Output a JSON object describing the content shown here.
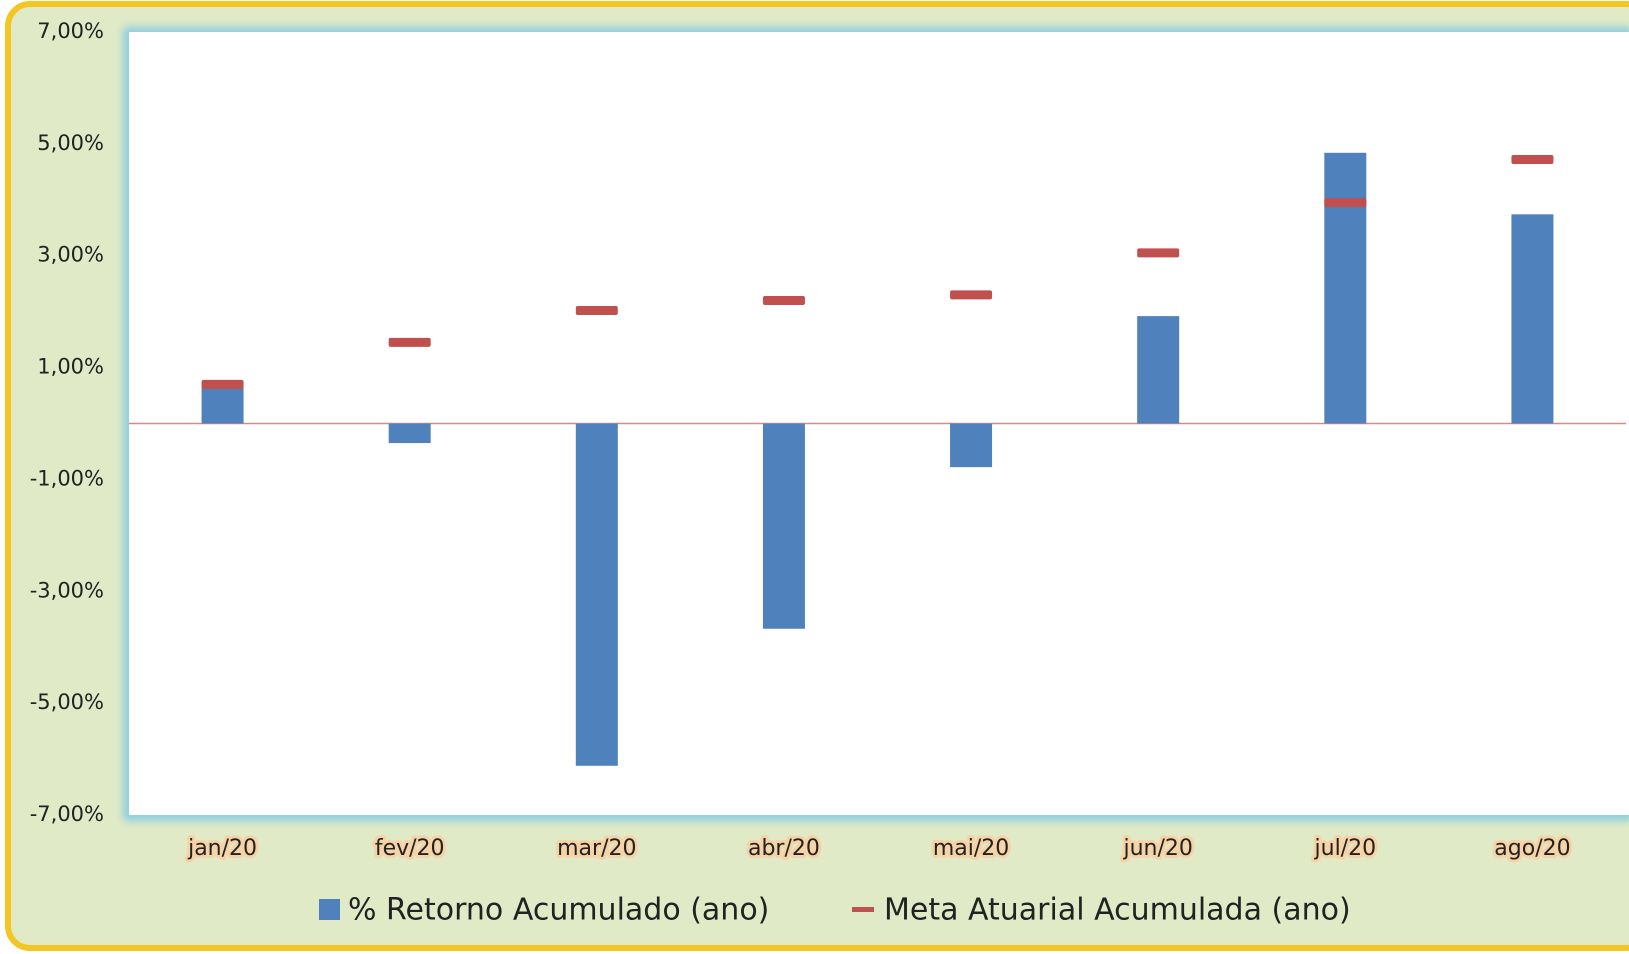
{
  "chart_data": {
    "type": "bar",
    "categories": [
      "jan/20",
      "fev/20",
      "mar/20",
      "abr/20",
      "mai/20",
      "jun/20",
      "jul/20",
      "ago/20"
    ],
    "series": [
      {
        "name": "% Retorno Acumulado (ano)",
        "type": "bar",
        "color": "#4f81bd",
        "values": [
          0.65,
          -0.35,
          -6.12,
          -3.67,
          -0.78,
          1.92,
          4.84,
          3.74
        ]
      },
      {
        "name": "Meta Atuarial Acumulada (ano)",
        "type": "dash",
        "color": "#c0504d",
        "values": [
          0.7,
          1.45,
          2.02,
          2.2,
          2.3,
          3.05,
          3.95,
          4.72
        ]
      }
    ],
    "ylim": [
      -7,
      7
    ],
    "yticks": [
      {
        "value": -7,
        "label": "-7,00%"
      },
      {
        "value": -5,
        "label": "-5,00%"
      },
      {
        "value": -3,
        "label": "-3,00%"
      },
      {
        "value": -1,
        "label": "-1,00%"
      },
      {
        "value": 1,
        "label": "1,00%"
      },
      {
        "value": 3,
        "label": "3,00%"
      },
      {
        "value": 5,
        "label": "5,00%"
      },
      {
        "value": 7,
        "label": "7,00%"
      }
    ],
    "grid": false
  }
}
